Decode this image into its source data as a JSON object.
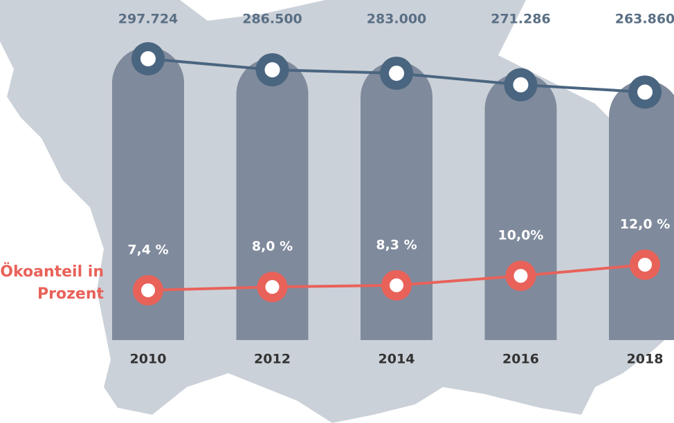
{
  "chart_data": {
    "type": "bar-line",
    "categories": [
      "2010",
      "2012",
      "2014",
      "2016",
      "2018"
    ],
    "series": [
      {
        "color": "#7f8a9c",
        "line_color": "#4a6580",
        "values": [
          297724,
          286500,
          283000,
          271286,
          263860
        ],
        "value_labels": [
          "297.724",
          "286.500",
          "283.000",
          "271.286",
          "263.860"
        ]
      },
      {
        "name": "Ökoanteil in Prozent",
        "color": "#e8625a",
        "values": [
          7.4,
          8.0,
          8.3,
          10.0,
          12.0
        ],
        "value_labels": [
          "7,4 %",
          "8,0 %",
          "8,3 %",
          "10,0%",
          "12,0 %"
        ]
      }
    ]
  }
}
